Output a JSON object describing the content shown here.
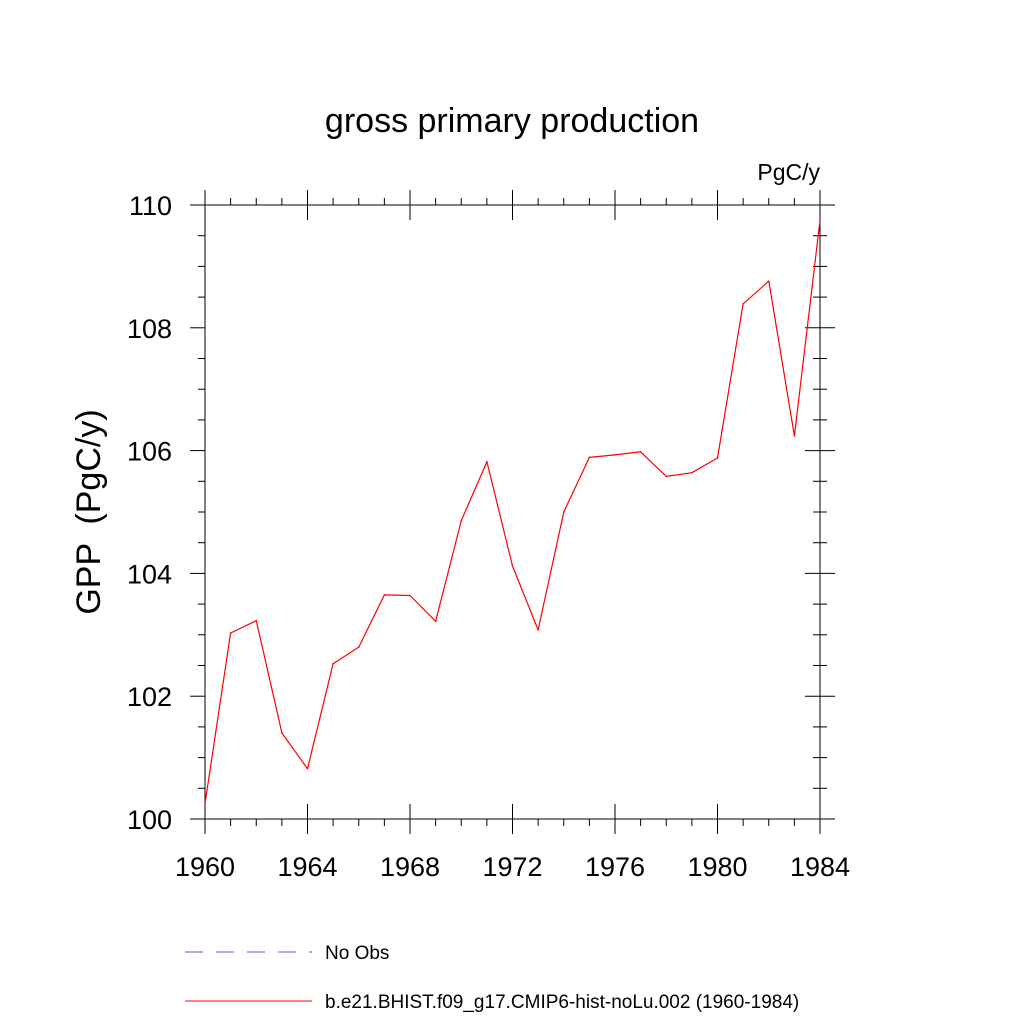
{
  "chart_data": {
    "type": "line",
    "title": "gross primary production",
    "units_label": "PgC/y",
    "ylabel": "GPP  (PgC/y)",
    "xlabel": "",
    "xlim": [
      1960,
      1984
    ],
    "ylim": [
      100,
      110
    ],
    "x_ticks": [
      1960,
      1964,
      1968,
      1972,
      1976,
      1980,
      1984
    ],
    "y_ticks": [
      100,
      102,
      104,
      106,
      108,
      110
    ],
    "grid": false,
    "legend_position": "bottom",
    "series": [
      {
        "name": "b.e21.BHIST.f09_g17.CMIP6-hist-noLu.002 (1960-1984)",
        "color": "#ff0000",
        "line_style": "solid",
        "x": [
          1960,
          1961,
          1962,
          1963,
          1964,
          1965,
          1966,
          1967,
          1968,
          1969,
          1970,
          1971,
          1972,
          1973,
          1974,
          1975,
          1976,
          1977,
          1978,
          1979,
          1980,
          1981,
          1982,
          1983,
          1984
        ],
        "y": [
          100.25,
          103.03,
          103.23,
          101.4,
          100.82,
          102.53,
          102.8,
          103.65,
          103.64,
          103.22,
          104.86,
          105.82,
          104.12,
          103.08,
          105.0,
          105.89,
          105.93,
          105.98,
          105.58,
          105.64,
          105.88,
          108.39,
          108.76,
          106.24,
          109.75
        ]
      }
    ],
    "legend": [
      {
        "label": "No Obs",
        "color": "#6a5acd",
        "line_style": "dashed"
      },
      {
        "label": "b.e21.BHIST.f09_g17.CMIP6-hist-noLu.002 (1960-1984)",
        "color": "#ff0000",
        "line_style": "solid"
      }
    ]
  }
}
